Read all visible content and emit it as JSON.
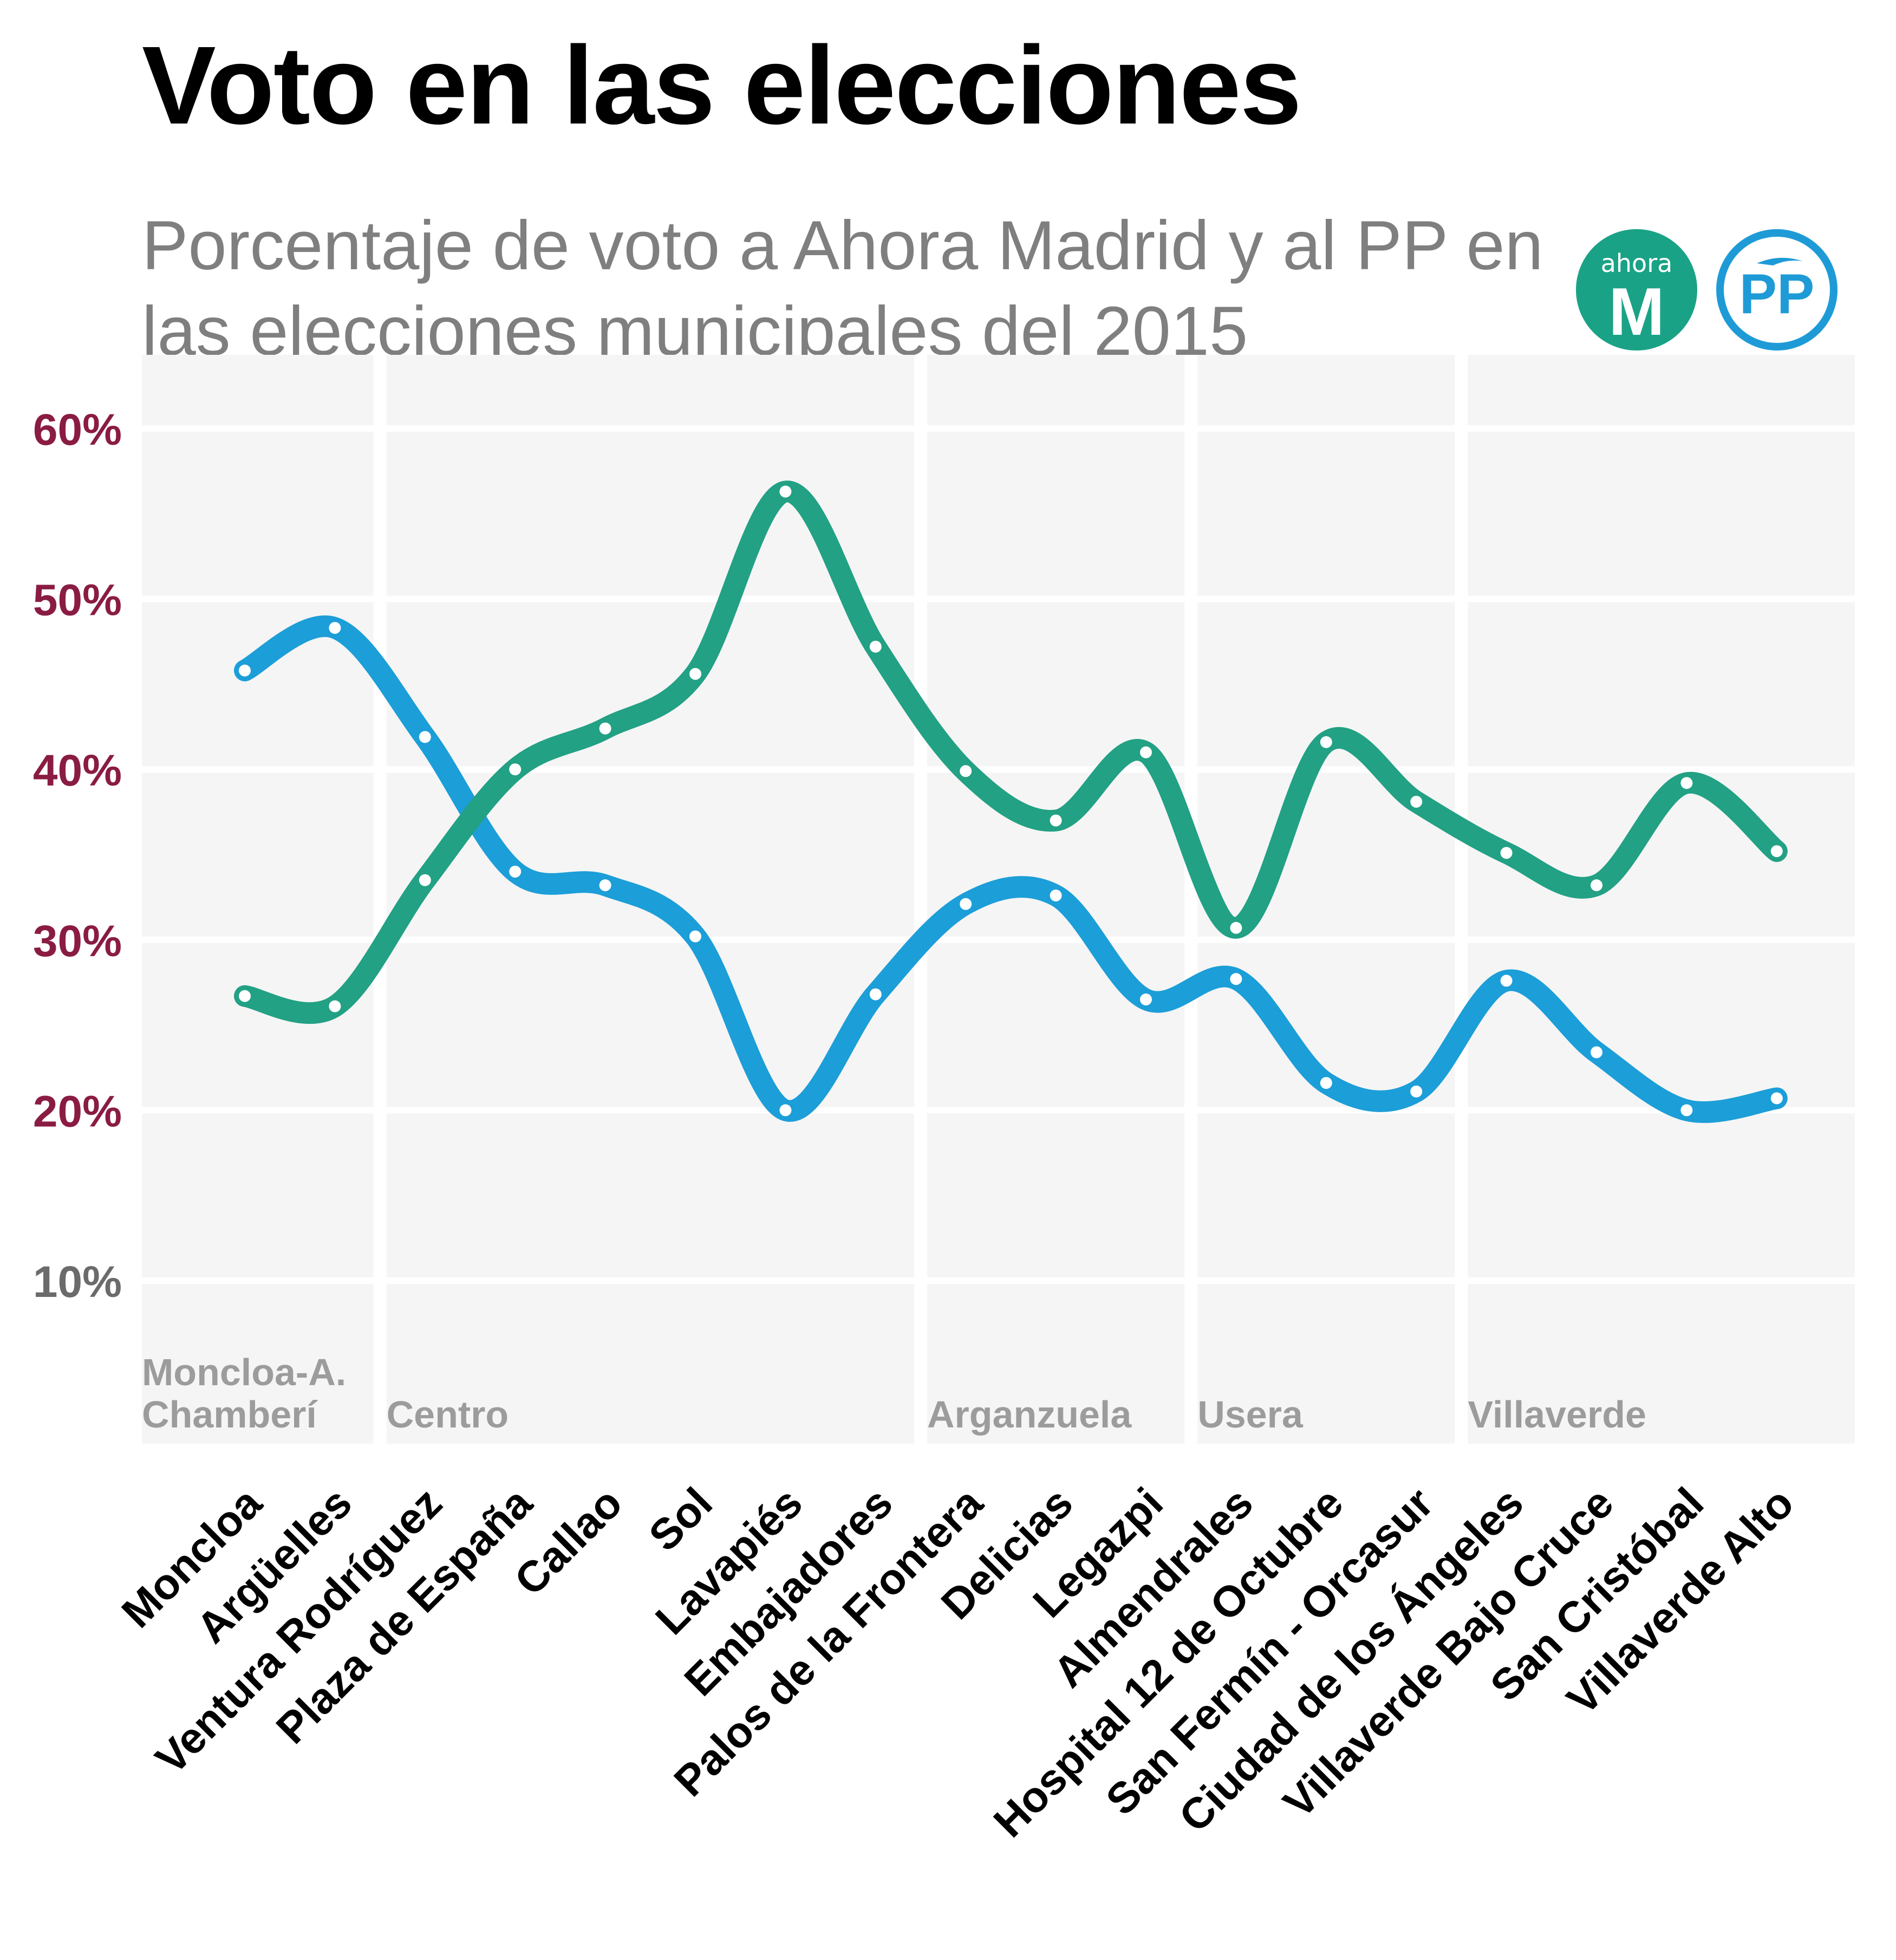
{
  "title": "Voto en las elecciones",
  "subtitle": "Porcentaje de voto a Ahora Madrid y al PP en las elecciones municipales del 2015",
  "logos": [
    {
      "name": "ahora-madrid-logo",
      "text_top": "ahora",
      "text_main": "M",
      "color": "#1aa286"
    },
    {
      "name": "pp-logo",
      "text_main": "PP",
      "color": "#1e9bd7"
    }
  ],
  "chart_data": {
    "type": "line",
    "title": "Voto en las elecciones",
    "subtitle": "Porcentaje de voto a Ahora Madrid y al PP en las elecciones municipales del 2015",
    "xlabel": "",
    "ylabel": "",
    "ylim": [
      0,
      65
    ],
    "yticks": [
      {
        "value": 10,
        "label": "10%",
        "color": "#6b6b6b"
      },
      {
        "value": 20,
        "label": "20%",
        "color": "#8a1c43"
      },
      {
        "value": 30,
        "label": "30%",
        "color": "#8a1c43"
      },
      {
        "value": 40,
        "label": "40%",
        "color": "#8a1c43"
      },
      {
        "value": 50,
        "label": "50%",
        "color": "#8a1c43"
      },
      {
        "value": 60,
        "label": "60%",
        "color": "#8a1c43"
      }
    ],
    "grid": true,
    "categories": [
      "Moncloa",
      "Argüelles",
      "Ventura Rodríguez",
      "Plaza de España",
      "Callao",
      "Sol",
      "Lavapiés",
      "Embajadores",
      "Palos de la Frontera",
      "Delicias",
      "Legazpi",
      "Almendrales",
      "Hospital 12 de Octubre",
      "San Fermín - Orcasur",
      "Ciudad de los Ángeles",
      "Villaverde Bajo Cruce",
      "San Cristóbal",
      "Villaverde Alto"
    ],
    "groups": [
      {
        "label": [
          "Moncloa-A.",
          "Chamberí"
        ],
        "start": 0,
        "end": 1
      },
      {
        "label": [
          "Centro"
        ],
        "start": 2,
        "end": 7
      },
      {
        "label": [
          "Arganzuela"
        ],
        "start": 8,
        "end": 10
      },
      {
        "label": [
          "Usera"
        ],
        "start": 11,
        "end": 13
      },
      {
        "label": [
          "Villaverde"
        ],
        "start": 14,
        "end": 17
      }
    ],
    "series": [
      {
        "id": "ahora",
        "color": "#22a184",
        "values": [
          26.7,
          26.1,
          33.5,
          40.0,
          42.4,
          45.6,
          56.3,
          47.2,
          39.9,
          37.0,
          41.0,
          30.7,
          41.6,
          38.1,
          35.1,
          33.2,
          39.2,
          35.2
        ]
      },
      {
        "id": "pp",
        "color": "#1c9ed8",
        "values": [
          45.8,
          48.3,
          41.9,
          34.0,
          33.2,
          30.2,
          20.0,
          26.8,
          32.1,
          32.6,
          26.5,
          27.7,
          21.6,
          21.1,
          27.6,
          23.4,
          20.0,
          20.7
        ]
      }
    ]
  }
}
